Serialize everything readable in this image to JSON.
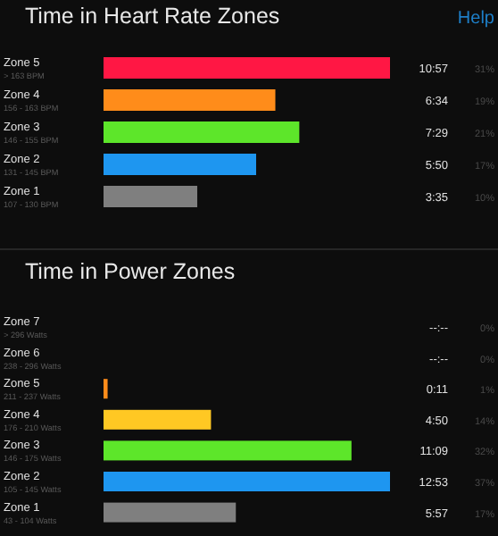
{
  "chart_data": [
    {
      "type": "bar",
      "orientation": "horizontal",
      "relative": false,
      "title": "Time in Heart Rate Zones",
      "categories": [
        "Zone 5\n> 163 BPM",
        "Zone 4\n156 - 163 BPM",
        "Zone 3\n146 - 155 BPM",
        "Zone 2\n131 - 145 BPM",
        "Zone 1\n107 - 130 BPM"
      ],
      "values": [
        10.95,
        6.567,
        7.483,
        5.833,
        3.583
      ],
      "colors": [
        "#ff1744",
        "#ff8c1a",
        "#5de62a",
        "#1e96f0",
        "#7f7f7f"
      ],
      "value_labels": [
        "10:57",
        "6:34",
        "7:29",
        "5:50",
        "3:35"
      ],
      "annotations": [
        "31%",
        "19%",
        "21%",
        "17%",
        "10%",
        "Help"
      ]
    },
    {
      "type": "bar",
      "orientation": "horizontal",
      "title": "Time in Power Zones",
      "categories": [
        "Zone 7\n> 296 Watts",
        "Zone 6\n238 - 296 Watts",
        "Zone 5\n211 - 237 Watts",
        "Zone 4\n176 - 210 Watts",
        "Zone 3\n146 - 175 Watts",
        "Zone 2\n105 - 145 Watts",
        "Zone 1\n43 - 104 Watts"
      ],
      "values": [
        null,
        null,
        0.183,
        4.833,
        11.15,
        12.883,
        5.95
      ],
      "colors": [
        null,
        null,
        "#ff8c1a",
        "#ffc823",
        "#5de62a",
        "#1e96f0",
        "#7f7f7f"
      ],
      "value_labels": [
        "--:--",
        "--:--",
        "0:11",
        "4:50",
        "11:09",
        "12:53",
        "5:57"
      ],
      "annotations": [
        "0%",
        "0%",
        "1%",
        "14%",
        "32%",
        "37%",
        "17%"
      ]
    }
  ]
}
